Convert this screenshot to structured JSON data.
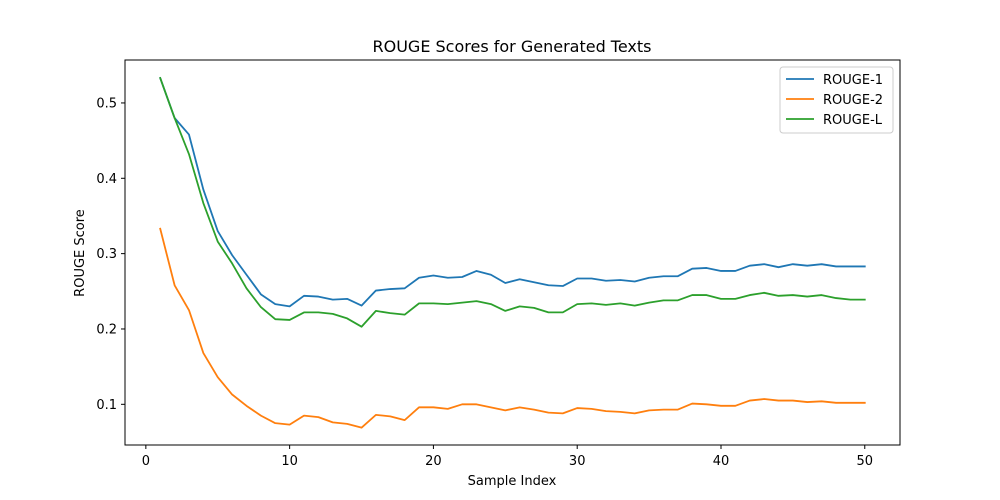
{
  "chart_data": {
    "type": "line",
    "title": "ROUGE Scores for Generated Texts",
    "xlabel": "Sample Index",
    "ylabel": "ROUGE Score",
    "xlim": [
      -1.45,
      52.45
    ],
    "ylim": [
      0.046,
      0.557
    ],
    "xticks": [
      0,
      10,
      20,
      30,
      40,
      50
    ],
    "yticks": [
      0.1,
      0.2,
      0.3,
      0.4,
      0.5
    ],
    "grid": false,
    "legend_position": "top-right",
    "x": [
      1,
      2,
      3,
      4,
      5,
      6,
      7,
      8,
      9,
      10,
      11,
      12,
      13,
      14,
      15,
      16,
      17,
      18,
      19,
      20,
      21,
      22,
      23,
      24,
      25,
      26,
      27,
      28,
      29,
      30,
      31,
      32,
      33,
      34,
      35,
      36,
      37,
      38,
      39,
      40,
      41,
      42,
      43,
      44,
      45,
      46,
      47,
      48,
      49,
      50
    ],
    "series": [
      {
        "name": "ROUGE-1",
        "color": "#1f77b4",
        "values": [
          0.533,
          0.48,
          0.458,
          0.385,
          0.33,
          0.298,
          0.272,
          0.246,
          0.233,
          0.23,
          0.244,
          0.243,
          0.239,
          0.24,
          0.231,
          0.251,
          0.253,
          0.254,
          0.268,
          0.271,
          0.268,
          0.269,
          0.277,
          0.272,
          0.261,
          0.266,
          0.262,
          0.258,
          0.257,
          0.267,
          0.267,
          0.264,
          0.265,
          0.263,
          0.268,
          0.27,
          0.27,
          0.28,
          0.281,
          0.277,
          0.277,
          0.284,
          0.286,
          0.282,
          0.286,
          0.284,
          0.286,
          0.283,
          0.283,
          0.283
        ]
      },
      {
        "name": "ROUGE-2",
        "color": "#ff7f0e",
        "values": [
          0.333,
          0.258,
          0.225,
          0.168,
          0.136,
          0.113,
          0.098,
          0.085,
          0.075,
          0.073,
          0.085,
          0.083,
          0.076,
          0.074,
          0.069,
          0.086,
          0.084,
          0.079,
          0.096,
          0.096,
          0.094,
          0.1,
          0.1,
          0.096,
          0.092,
          0.096,
          0.093,
          0.089,
          0.088,
          0.095,
          0.094,
          0.091,
          0.09,
          0.088,
          0.092,
          0.093,
          0.093,
          0.101,
          0.1,
          0.098,
          0.098,
          0.105,
          0.107,
          0.105,
          0.105,
          0.103,
          0.104,
          0.102,
          0.102,
          0.102
        ]
      },
      {
        "name": "ROUGE-L",
        "color": "#2ca02c",
        "values": [
          0.533,
          0.48,
          0.432,
          0.367,
          0.316,
          0.287,
          0.254,
          0.229,
          0.213,
          0.212,
          0.222,
          0.222,
          0.22,
          0.214,
          0.203,
          0.224,
          0.221,
          0.219,
          0.234,
          0.234,
          0.233,
          0.235,
          0.237,
          0.233,
          0.224,
          0.23,
          0.228,
          0.222,
          0.222,
          0.233,
          0.234,
          0.232,
          0.234,
          0.231,
          0.235,
          0.238,
          0.238,
          0.245,
          0.245,
          0.24,
          0.24,
          0.245,
          0.248,
          0.244,
          0.245,
          0.243,
          0.245,
          0.241,
          0.239,
          0.239
        ]
      }
    ]
  }
}
